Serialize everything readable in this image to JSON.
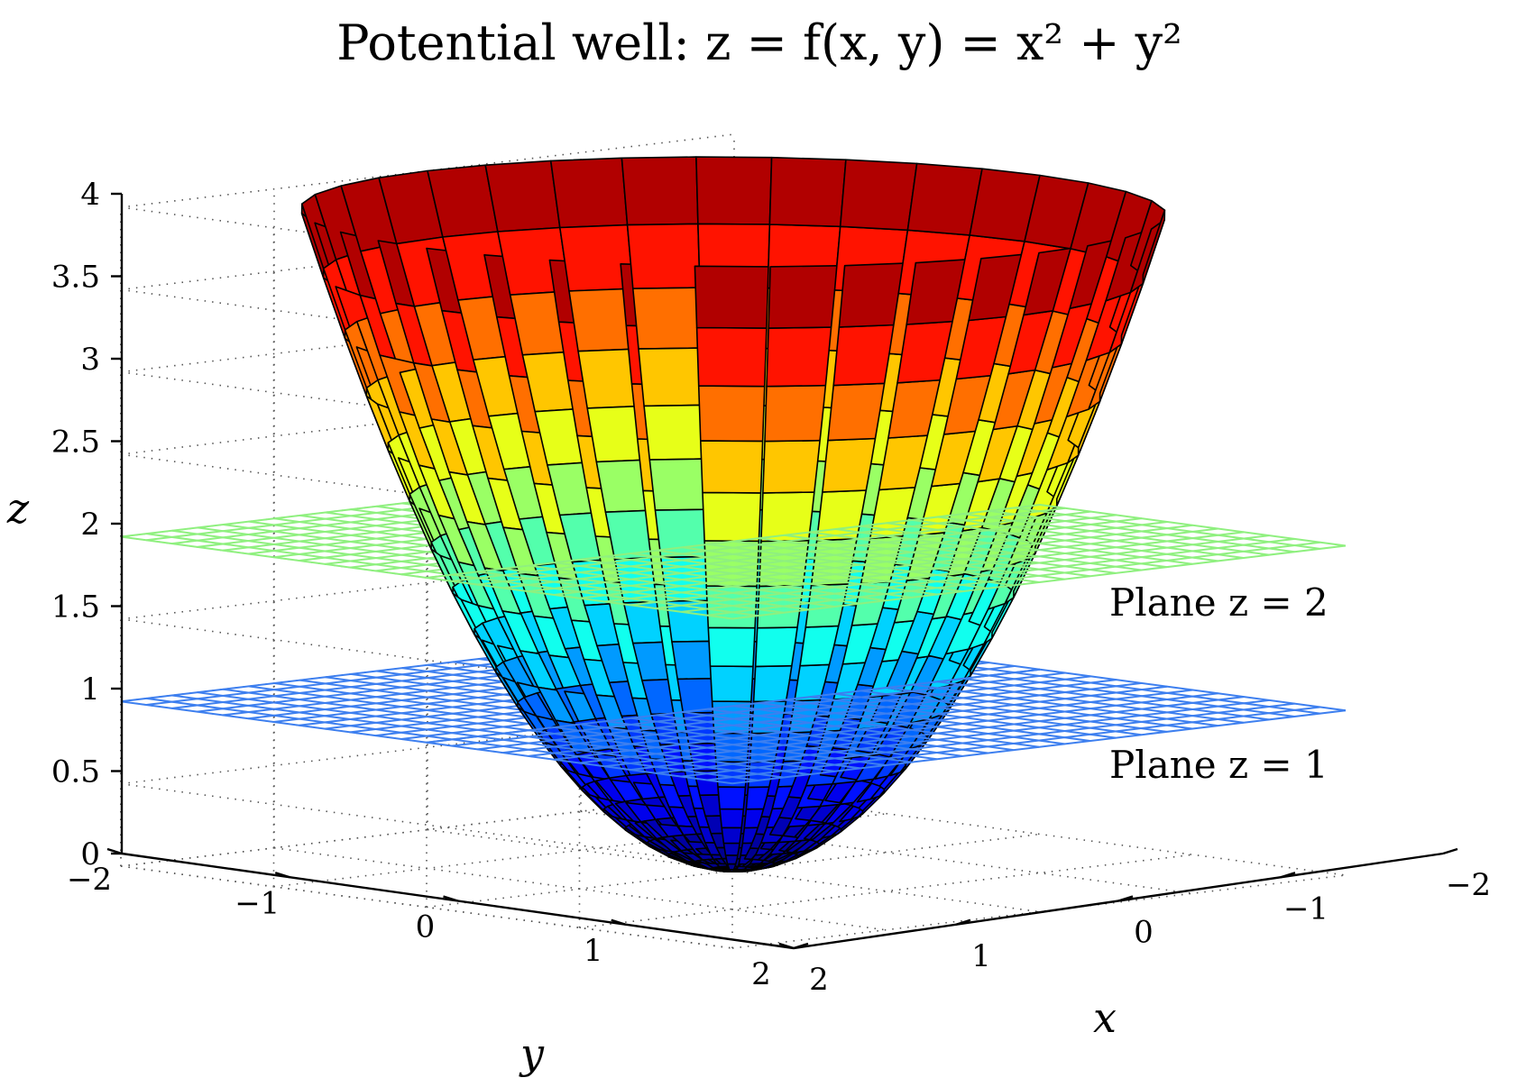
{
  "chart_data": {
    "type": "surface",
    "title": "Potential well: z = f(x, y) = x² + y²",
    "xlabel": "x",
    "ylabel": "y",
    "zlabel": "z",
    "xlim": [
      -2,
      2
    ],
    "ylim": [
      -2,
      2
    ],
    "zlim": [
      0,
      4
    ],
    "x_ticks": [
      "2",
      "1",
      "0",
      "−1",
      "−2"
    ],
    "y_ticks": [
      "−2",
      "−1",
      "0",
      "1",
      "2"
    ],
    "z_ticks": [
      "0",
      "0.5",
      "1",
      "1.5",
      "2",
      "2.5",
      "3",
      "3.5",
      "4"
    ],
    "grid": true,
    "colormap": "jet",
    "surface": {
      "function": "z = x^2 + y^2",
      "r_min": 0,
      "r_max": 2,
      "z_max": 4,
      "radial_rings": 20,
      "angular_segments": 36,
      "edge_color": "#000000"
    },
    "planes": [
      {
        "z": 2,
        "label": "Plane z = 2",
        "color": "#8ff07f"
      },
      {
        "z": 1,
        "label": "Plane z = 1",
        "color": "#3d7fef"
      }
    ]
  }
}
